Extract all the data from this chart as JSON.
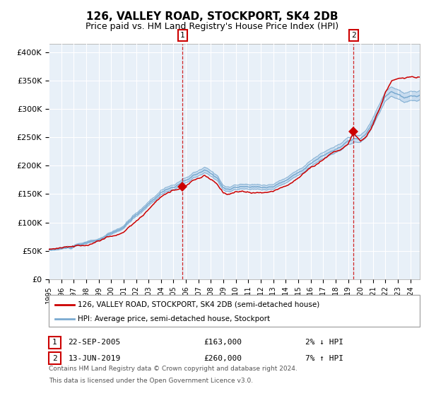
{
  "title": "126, VALLEY ROAD, STOCKPORT, SK4 2DB",
  "subtitle": "Price paid vs. HM Land Registry's House Price Index (HPI)",
  "title_fontsize": 11,
  "subtitle_fontsize": 9,
  "ylabel_ticks": [
    "£0",
    "£50K",
    "£100K",
    "£150K",
    "£200K",
    "£250K",
    "£300K",
    "£350K",
    "£400K"
  ],
  "ytick_values": [
    0,
    50000,
    100000,
    150000,
    200000,
    250000,
    300000,
    350000,
    400000
  ],
  "ylim": [
    0,
    415000
  ],
  "xlim_start": 1995.0,
  "xlim_end": 2024.75,
  "hpi_line_color": "#7AAAD0",
  "hpi_fill_color": "#C8DCEF",
  "price_line_color": "#CC0000",
  "annotation_box_color": "#CC0000",
  "vline_color": "#CC0000",
  "plot_bg_color": "#E8F0F8",
  "sale1_price": 163000,
  "sale1_year": 2005.73,
  "sale1_label": "1",
  "sale1_date": "22-SEP-2005",
  "sale1_hpi_pct": "2% ↓ HPI",
  "sale2_price": 260000,
  "sale2_year": 2019.45,
  "sale2_label": "2",
  "sale2_date": "13-JUN-2019",
  "sale2_hpi_pct": "7% ↑ HPI",
  "legend_line1": "126, VALLEY ROAD, STOCKPORT, SK4 2DB (semi-detached house)",
  "legend_line2": "HPI: Average price, semi-detached house, Stockport",
  "footnote1": "Contains HM Land Registry data © Crown copyright and database right 2024.",
  "footnote2": "This data is licensed under the Open Government Licence v3.0.",
  "grid_color": "#FFFFFF",
  "xtick_years": [
    1995,
    1996,
    1997,
    1998,
    1999,
    2000,
    2001,
    2002,
    2003,
    2004,
    2005,
    2006,
    2007,
    2008,
    2009,
    2010,
    2011,
    2012,
    2013,
    2014,
    2015,
    2016,
    2017,
    2018,
    2019,
    2020,
    2021,
    2022,
    2023,
    2024
  ]
}
